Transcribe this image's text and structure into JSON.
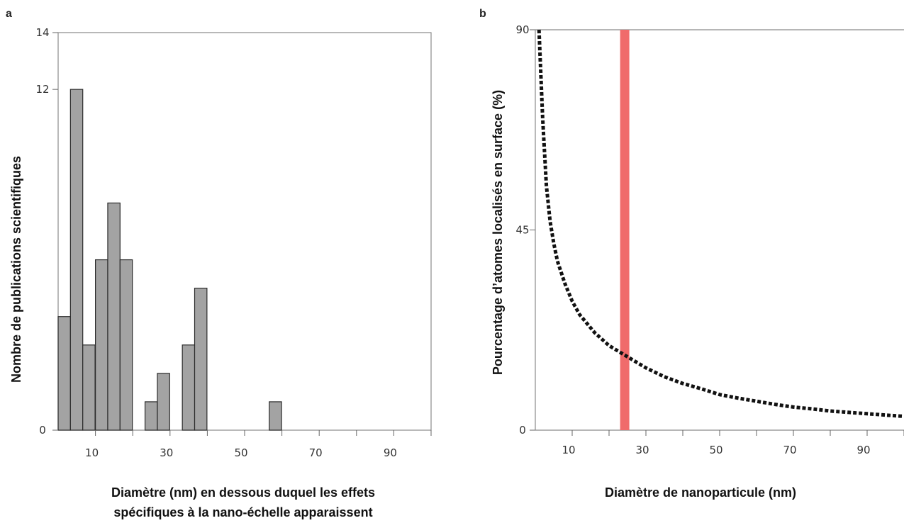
{
  "chart_data": [
    {
      "panel": "a",
      "type": "bar",
      "xlabel_lines": [
        "Diamètre (nm) en dessous duquel les effets",
        "spécifiques à la nano-échelle apparaissent"
      ],
      "ylabel": "Nombre de publications scientifiques",
      "xlim": [
        0,
        100
      ],
      "ylim": [
        0,
        14
      ],
      "x_ticks": [
        10,
        30,
        50,
        70,
        90
      ],
      "y_tick_labels": [
        "0",
        "12",
        "14"
      ],
      "bar_width": 3.3,
      "bars": [
        {
          "x": 0,
          "value": 4
        },
        {
          "x": 3.3,
          "value": 12
        },
        {
          "x": 6.6,
          "value": 3
        },
        {
          "x": 10,
          "value": 6
        },
        {
          "x": 13.3,
          "value": 8
        },
        {
          "x": 16.6,
          "value": 6
        },
        {
          "x": 23.3,
          "value": 1
        },
        {
          "x": 26.6,
          "value": 2
        },
        {
          "x": 33.3,
          "value": 3
        },
        {
          "x": 36.6,
          "value": 5
        },
        {
          "x": 56.6,
          "value": 1
        }
      ],
      "bar_color": "#a3a3a3"
    },
    {
      "panel": "b",
      "type": "line",
      "xlabel": "Diamètre de nanoparticule (nm)",
      "ylabel": "Pourcentage d’atomes localisés en surface (%)",
      "xlim": [
        0,
        100
      ],
      "ylim": [
        0,
        90
      ],
      "x_ticks": [
        10,
        30,
        50,
        70,
        90
      ],
      "y_ticks": [
        0,
        45,
        90
      ],
      "series": [
        {
          "x": [
            1,
            2,
            3,
            4,
            5,
            6,
            8,
            10,
            12,
            14,
            16,
            18,
            20,
            22,
            25,
            28,
            30,
            35,
            40,
            45,
            50,
            55,
            60,
            65,
            70,
            75,
            80,
            85,
            90,
            95,
            100
          ],
          "values": [
            90,
            70,
            55,
            47,
            42,
            38,
            33,
            29,
            26,
            24,
            22,
            20.5,
            19,
            18,
            16.5,
            15,
            14,
            12,
            10.5,
            9.3,
            8,
            7.2,
            6.5,
            5.8,
            5.2,
            4.8,
            4.3,
            4,
            3.7,
            3.4,
            3.1
          ],
          "style": "dotted",
          "color": "#111111"
        }
      ],
      "highlight_band": {
        "x": [
          23,
          25.5
        ],
        "color": "#f06b6b"
      }
    }
  ]
}
